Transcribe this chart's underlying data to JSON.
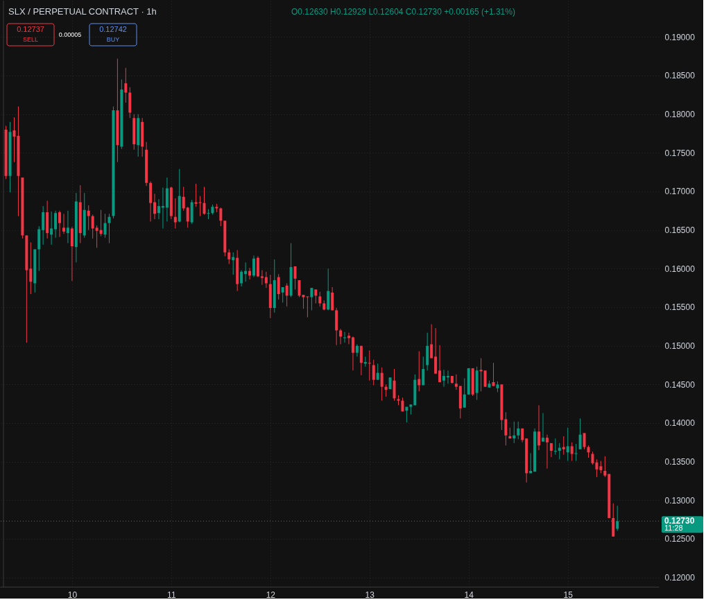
{
  "chart_data": {
    "type": "candlestick",
    "title": "SLX / PERPETUAL CONTRACT · 1h",
    "annotations": [
      "O0.12630 H0.12929 L0.12604 C0.12730 +0.00165 (+1.31%)",
      "0.12737",
      "SELL",
      "0.00005",
      "0.12742",
      "BUY",
      "11:28"
    ],
    "x": [
      9.3333,
      9.375,
      9.4167,
      9.4583,
      9.5,
      9.5417,
      9.5833,
      9.625,
      9.6667,
      9.7083,
      9.75,
      9.7917,
      9.8333,
      9.875,
      9.9167,
      9.9583,
      10,
      10.0417,
      10.0833,
      10.125,
      10.1667,
      10.2083,
      10.25,
      10.2917,
      10.3333,
      10.375,
      10.4167,
      10.4583,
      10.5,
      10.5417,
      10.5833,
      10.625,
      10.6667,
      10.7083,
      10.75,
      10.7917,
      10.8333,
      10.875,
      10.9167,
      10.9583,
      11,
      11.0417,
      11.0833,
      11.125,
      11.1667,
      11.2083,
      11.25,
      11.2917,
      11.3333,
      11.375,
      11.4167,
      11.4583,
      11.5,
      11.5417,
      11.5833,
      11.625,
      11.6667,
      11.7083,
      11.75,
      11.7917,
      11.8333,
      11.875,
      11.9167,
      11.9583,
      12,
      12.0417,
      12.0833,
      12.125,
      12.1667,
      12.2083,
      12.25,
      12.2917,
      12.3333,
      12.375,
      12.4167,
      12.4583,
      12.5,
      12.5417,
      12.5833,
      12.625,
      12.6667,
      12.7083,
      12.75,
      12.7917,
      12.8333,
      12.875,
      12.9167,
      12.9583,
      13,
      13.0417,
      13.0833,
      13.125,
      13.1667,
      13.2083,
      13.25,
      13.2917,
      13.3333,
      13.375,
      13.4167,
      13.4583,
      13.5,
      13.5417,
      13.5833,
      13.625,
      13.6667,
      13.7083,
      13.75,
      13.7917,
      13.8333,
      13.875,
      13.9167,
      13.9583,
      14,
      14.0417,
      14.0833,
      14.125,
      14.1667,
      14.2083,
      14.25,
      14.2917,
      14.3333,
      14.375,
      14.4167,
      14.4583,
      14.5,
      14.5417,
      14.5833,
      14.625,
      14.6667,
      14.7083,
      14.75,
      14.7917,
      14.8333,
      14.875,
      14.9167,
      14.9583,
      15,
      15.0417,
      15.0833,
      15.125,
      15.1667,
      15.2083,
      15.25,
      15.2917,
      15.3333,
      15.375,
      15.4167,
      15.4583,
      15.5
    ],
    "ohlc": [
      [
        0.178,
        0.1785,
        0.1716,
        0.172
      ],
      [
        0.172,
        0.179,
        0.1699,
        0.1777
      ],
      [
        0.1779,
        0.1796,
        0.1738,
        0.1771
      ],
      [
        0.1772,
        0.181,
        0.1668,
        0.172
      ],
      [
        0.1718,
        0.1718,
        0.1639,
        0.1643
      ],
      [
        0.1643,
        0.1643,
        0.1504,
        0.1598
      ],
      [
        0.16,
        0.1634,
        0.1567,
        0.1583
      ],
      [
        0.1581,
        0.1625,
        0.1569,
        0.1625
      ],
      [
        0.1625,
        0.1655,
        0.1597,
        0.1651
      ],
      [
        0.165,
        0.1681,
        0.1631,
        0.1673
      ],
      [
        0.1673,
        0.1688,
        0.1639,
        0.1646
      ],
      [
        0.1644,
        0.1674,
        0.1631,
        0.1652
      ],
      [
        0.1651,
        0.1675,
        0.164,
        0.1672
      ],
      [
        0.1673,
        0.1675,
        0.1641,
        0.1659
      ],
      [
        0.1653,
        0.1671,
        0.1645,
        0.1648
      ],
      [
        0.1646,
        0.1675,
        0.1633,
        0.1653
      ],
      [
        0.1652,
        0.1654,
        0.1584,
        0.1629
      ],
      [
        0.1628,
        0.1698,
        0.1608,
        0.1687
      ],
      [
        0.1686,
        0.1708,
        0.1633,
        0.1646
      ],
      [
        0.1643,
        0.1698,
        0.164,
        0.1676
      ],
      [
        0.1675,
        0.1682,
        0.165,
        0.1668
      ],
      [
        0.1668,
        0.167,
        0.1639,
        0.1652
      ],
      [
        0.1653,
        0.1656,
        0.1627,
        0.1649
      ],
      [
        0.165,
        0.1676,
        0.1642,
        0.1645
      ],
      [
        0.1644,
        0.1671,
        0.164,
        0.1659
      ],
      [
        0.1659,
        0.1671,
        0.1633,
        0.1667
      ],
      [
        0.1668,
        0.181,
        0.1665,
        0.1805
      ],
      [
        0.1805,
        0.1872,
        0.1738,
        0.176
      ],
      [
        0.1758,
        0.1845,
        0.1755,
        0.1832
      ],
      [
        0.184,
        0.186,
        0.1815,
        0.1828
      ],
      [
        0.1828,
        0.1835,
        0.1795,
        0.1802
      ],
      [
        0.1795,
        0.18,
        0.1754,
        0.1761
      ],
      [
        0.176,
        0.18,
        0.1745,
        0.1795
      ],
      [
        0.179,
        0.1795,
        0.1745,
        0.1758
      ],
      [
        0.1754,
        0.1764,
        0.1707,
        0.1711
      ],
      [
        0.1711,
        0.1713,
        0.1661,
        0.1685
      ],
      [
        0.1686,
        0.1697,
        0.1664,
        0.1671
      ],
      [
        0.1672,
        0.169,
        0.1664,
        0.1681
      ],
      [
        0.1679,
        0.1705,
        0.1652,
        0.1681
      ],
      [
        0.1679,
        0.1718,
        0.1661,
        0.1704
      ],
      [
        0.1705,
        0.1706,
        0.1664,
        0.1668
      ],
      [
        0.1667,
        0.1691,
        0.1652,
        0.166
      ],
      [
        0.1661,
        0.1729,
        0.166,
        0.1694
      ],
      [
        0.1693,
        0.1706,
        0.1675,
        0.1678
      ],
      [
        0.1679,
        0.168,
        0.1653,
        0.1661
      ],
      [
        0.166,
        0.1689,
        0.1658,
        0.1686
      ],
      [
        0.1686,
        0.171,
        0.168,
        0.1684
      ],
      [
        0.1686,
        0.1694,
        0.1668,
        0.1685
      ],
      [
        0.1685,
        0.1706,
        0.167,
        0.1671
      ],
      [
        0.1671,
        0.1677,
        0.1664,
        0.1672
      ],
      [
        0.1672,
        0.1683,
        0.167,
        0.168
      ],
      [
        0.168,
        0.1684,
        0.1673,
        0.1678
      ],
      [
        0.1678,
        0.1679,
        0.1655,
        0.1662
      ],
      [
        0.1662,
        0.1662,
        0.1616,
        0.1621
      ],
      [
        0.1621,
        0.1625,
        0.1606,
        0.1612
      ],
      [
        0.1611,
        0.1621,
        0.1592,
        0.1615
      ],
      [
        0.1614,
        0.1624,
        0.1571,
        0.158
      ],
      [
        0.1581,
        0.1598,
        0.1577,
        0.1596
      ],
      [
        0.1593,
        0.1608,
        0.1583,
        0.1597
      ],
      [
        0.1597,
        0.1601,
        0.1586,
        0.1591
      ],
      [
        0.1591,
        0.1617,
        0.1589,
        0.1613
      ],
      [
        0.1614,
        0.1616,
        0.1589,
        0.159
      ],
      [
        0.159,
        0.1598,
        0.1579,
        0.1588
      ],
      [
        0.1589,
        0.1596,
        0.1575,
        0.1581
      ],
      [
        0.158,
        0.1592,
        0.1536,
        0.1549
      ],
      [
        0.1549,
        0.1612,
        0.1543,
        0.1585
      ],
      [
        0.1589,
        0.1593,
        0.156,
        0.1567
      ],
      [
        0.1569,
        0.1576,
        0.1556,
        0.1576
      ],
      [
        0.1578,
        0.1581,
        0.1551,
        0.1565
      ],
      [
        0.1565,
        0.1633,
        0.1563,
        0.1602
      ],
      [
        0.1603,
        0.1603,
        0.1573,
        0.1587
      ],
      [
        0.1585,
        0.1585,
        0.1563,
        0.1565
      ],
      [
        0.1566,
        0.1566,
        0.1548,
        0.1563
      ],
      [
        0.1564,
        0.1564,
        0.1537,
        0.1563
      ],
      [
        0.1563,
        0.1575,
        0.1546,
        0.1575
      ],
      [
        0.1573,
        0.1573,
        0.1555,
        0.1565
      ],
      [
        0.1564,
        0.157,
        0.1551,
        0.1555
      ],
      [
        0.1555,
        0.1559,
        0.1546,
        0.1547
      ],
      [
        0.1547,
        0.16,
        0.1546,
        0.1571
      ],
      [
        0.1569,
        0.1576,
        0.1546,
        0.1546
      ],
      [
        0.1546,
        0.1549,
        0.1501,
        0.152
      ],
      [
        0.152,
        0.1522,
        0.1502,
        0.1512
      ],
      [
        0.151,
        0.1518,
        0.1504,
        0.1511
      ],
      [
        0.1513,
        0.1517,
        0.1502,
        0.151
      ],
      [
        0.1511,
        0.1512,
        0.1468,
        0.1491
      ],
      [
        0.1491,
        0.1502,
        0.1486,
        0.15
      ],
      [
        0.15,
        0.15,
        0.1462,
        0.1478
      ],
      [
        0.1477,
        0.1486,
        0.1473,
        0.1479
      ],
      [
        0.1478,
        0.1494,
        0.1455,
        0.1477
      ],
      [
        0.1475,
        0.1482,
        0.1449,
        0.1456
      ],
      [
        0.1456,
        0.1477,
        0.1456,
        0.1465
      ],
      [
        0.1465,
        0.1472,
        0.1429,
        0.1447
      ],
      [
        0.1447,
        0.145,
        0.1434,
        0.1443
      ],
      [
        0.1444,
        0.1459,
        0.1444,
        0.1459
      ],
      [
        0.1455,
        0.147,
        0.1429,
        0.1432
      ],
      [
        0.1431,
        0.1436,
        0.1423,
        0.1429
      ],
      [
        0.1429,
        0.1433,
        0.1415,
        0.1415
      ],
      [
        0.1416,
        0.1421,
        0.1401,
        0.1421
      ],
      [
        0.1421,
        0.1424,
        0.1411,
        0.1424
      ],
      [
        0.1423,
        0.1463,
        0.1423,
        0.1456
      ],
      [
        0.1457,
        0.1493,
        0.1441,
        0.1449
      ],
      [
        0.1449,
        0.1486,
        0.1449,
        0.147
      ],
      [
        0.1475,
        0.1517,
        0.1468,
        0.15
      ],
      [
        0.1502,
        0.1528,
        0.1484,
        0.1484
      ],
      [
        0.1486,
        0.1523,
        0.1464,
        0.1464
      ],
      [
        0.1468,
        0.1501,
        0.1453,
        0.1453
      ],
      [
        0.1455,
        0.1469,
        0.1447,
        0.1461
      ],
      [
        0.1459,
        0.1468,
        0.1451,
        0.1461
      ],
      [
        0.1461,
        0.1461,
        0.1451,
        0.1452
      ],
      [
        0.1451,
        0.1463,
        0.1443,
        0.1447
      ],
      [
        0.1448,
        0.1448,
        0.1406,
        0.1419
      ],
      [
        0.142,
        0.1458,
        0.142,
        0.1437
      ],
      [
        0.1437,
        0.1471,
        0.1437,
        0.1471
      ],
      [
        0.1471,
        0.1471,
        0.1435,
        0.1437
      ],
      [
        0.1439,
        0.1473,
        0.143,
        0.1468
      ],
      [
        0.1469,
        0.1484,
        0.1441,
        0.1467
      ],
      [
        0.1468,
        0.1468,
        0.1447,
        0.1447
      ],
      [
        0.1446,
        0.1455,
        0.1446,
        0.1451
      ],
      [
        0.1453,
        0.1478,
        0.1448,
        0.1448
      ],
      [
        0.1445,
        0.1454,
        0.144,
        0.145
      ],
      [
        0.145,
        0.145,
        0.1391,
        0.1404
      ],
      [
        0.1405,
        0.1414,
        0.1371,
        0.1384
      ],
      [
        0.1383,
        0.1394,
        0.138,
        0.138
      ],
      [
        0.138,
        0.1402,
        0.1374,
        0.1384
      ],
      [
        0.1384,
        0.1402,
        0.1379,
        0.1393
      ],
      [
        0.1393,
        0.1393,
        0.1375,
        0.1378
      ],
      [
        0.138,
        0.138,
        0.1323,
        0.1335
      ],
      [
        0.1335,
        0.1361,
        0.1335,
        0.1338
      ],
      [
        0.1337,
        0.1393,
        0.1337,
        0.1389
      ],
      [
        0.1389,
        0.1423,
        0.1365,
        0.1371
      ],
      [
        0.1376,
        0.1413,
        0.1376,
        0.1381
      ],
      [
        0.1381,
        0.1385,
        0.1341,
        0.1375
      ],
      [
        0.1374,
        0.1374,
        0.1356,
        0.1364
      ],
      [
        0.1363,
        0.138,
        0.1359,
        0.1364
      ],
      [
        0.1364,
        0.1374,
        0.1353,
        0.1368
      ],
      [
        0.1369,
        0.1383,
        0.1359,
        0.1366
      ],
      [
        0.1362,
        0.1394,
        0.1351,
        0.137
      ],
      [
        0.137,
        0.1375,
        0.1351,
        0.136
      ],
      [
        0.136,
        0.1373,
        0.1351,
        0.1361
      ],
      [
        0.1366,
        0.1406,
        0.1366,
        0.1385
      ],
      [
        0.1387,
        0.1387,
        0.1366,
        0.1369
      ],
      [
        0.1369,
        0.1371,
        0.1355,
        0.1362
      ],
      [
        0.136,
        0.1363,
        0.1346,
        0.1348
      ],
      [
        0.1349,
        0.1353,
        0.133,
        0.134
      ],
      [
        0.1344,
        0.1351,
        0.1335,
        0.1339
      ],
      [
        0.1338,
        0.1357,
        0.133,
        0.1332
      ],
      [
        0.1334,
        0.1334,
        0.1277,
        0.1277
      ],
      [
        0.1277,
        0.1296,
        0.1253,
        0.1253
      ],
      [
        0.1263,
        0.12929,
        0.12604,
        0.1273
      ]
    ],
    "colors": [
      "#f23645",
      "#089981",
      "#f23645",
      "#f23645",
      "#f23645",
      "#f23645",
      "#f23645",
      "#089981",
      "#089981",
      "#089981",
      "#f23645",
      "#089981",
      "#089981",
      "#f23645",
      "#f23645",
      "#089981",
      "#f23645",
      "#089981",
      "#f23645",
      "#089981",
      "#f23645",
      "#f23645",
      "#f23645",
      "#f23645",
      "#089981",
      "#089981",
      "#089981",
      "#f23645",
      "#089981",
      "#f23645",
      "#f23645",
      "#f23645",
      "#089981",
      "#f23645",
      "#f23645",
      "#f23645",
      "#f23645",
      "#089981",
      "#089981",
      "#089981",
      "#f23645",
      "#f23645",
      "#089981",
      "#f23645",
      "#f23645",
      "#089981",
      "#f23645",
      "#f23645",
      "#f23645",
      "#089981",
      "#089981",
      "#f23645",
      "#f23645",
      "#f23645",
      "#f23645",
      "#089981",
      "#f23645",
      "#089981",
      "#089981",
      "#f23645",
      "#089981",
      "#f23645",
      "#f23645",
      "#f23645",
      "#f23645",
      "#089981",
      "#f23645",
      "#089981",
      "#f23645",
      "#089981",
      "#f23645",
      "#f23645",
      "#f23645",
      "#f23645",
      "#089981",
      "#f23645",
      "#f23645",
      "#f23645",
      "#089981",
      "#f23645",
      "#f23645",
      "#f23645",
      "#089981",
      "#f23645",
      "#f23645",
      "#089981",
      "#f23645",
      "#089981",
      "#f23645",
      "#f23645",
      "#089981",
      "#f23645",
      "#f23645",
      "#089981",
      "#f23645",
      "#f23645",
      "#f23645",
      "#089981",
      "#089981",
      "#089981",
      "#f23645",
      "#089981",
      "#089981",
      "#f23645",
      "#f23645",
      "#f23645",
      "#089981",
      "#089981",
      "#f23645",
      "#f23645",
      "#f23645",
      "#089981",
      "#089981",
      "#f23645",
      "#089981",
      "#f23645",
      "#f23645",
      "#089981",
      "#f23645",
      "#089981",
      "#f23645",
      "#f23645",
      "#f23645",
      "#089981",
      "#089981",
      "#f23645",
      "#f23645",
      "#089981",
      "#089981",
      "#f23645",
      "#089981",
      "#f23645",
      "#f23645",
      "#089981",
      "#089981",
      "#f23645",
      "#089981",
      "#f23645",
      "#089981",
      "#089981",
      "#f23645",
      "#f23645",
      "#f23645",
      "#f23645",
      "#f23645",
      "#f23645",
      "#f23645",
      "#f23645",
      "#089981"
    ],
    "xlim": [
      9.3083,
      15.8833
    ],
    "ylim": [
      0.1188,
      0.1947
    ],
    "xticks": [
      10,
      11,
      12,
      13,
      14,
      15
    ],
    "yticks": [
      {
        "value": 0.12,
        "label": "0.12000"
      },
      {
        "value": 0.125,
        "label": "0.12500"
      },
      {
        "value": 0.13,
        "label": "0.13000"
      },
      {
        "value": 0.135,
        "label": "0.13500"
      },
      {
        "value": 0.14,
        "label": "0.14000"
      },
      {
        "value": 0.145,
        "label": "0.14500"
      },
      {
        "value": 0.15,
        "label": "0.15000"
      },
      {
        "value": 0.155,
        "label": "0.15500"
      },
      {
        "value": 0.16,
        "label": "0.16000"
      },
      {
        "value": 0.165,
        "label": "0.16500"
      },
      {
        "value": 0.17,
        "label": "0.17000"
      },
      {
        "value": 0.175,
        "label": "0.17500"
      },
      {
        "value": 0.18,
        "label": "0.18000"
      },
      {
        "value": 0.185,
        "label": "0.18500"
      },
      {
        "value": 0.19,
        "label": "0.19000"
      }
    ],
    "grid": true,
    "ref_lines": [
      {
        "axis": "y",
        "value": 0.1273,
        "label": "0.12730",
        "color": "#089981",
        "line_style": "dotted"
      }
    ]
  }
}
